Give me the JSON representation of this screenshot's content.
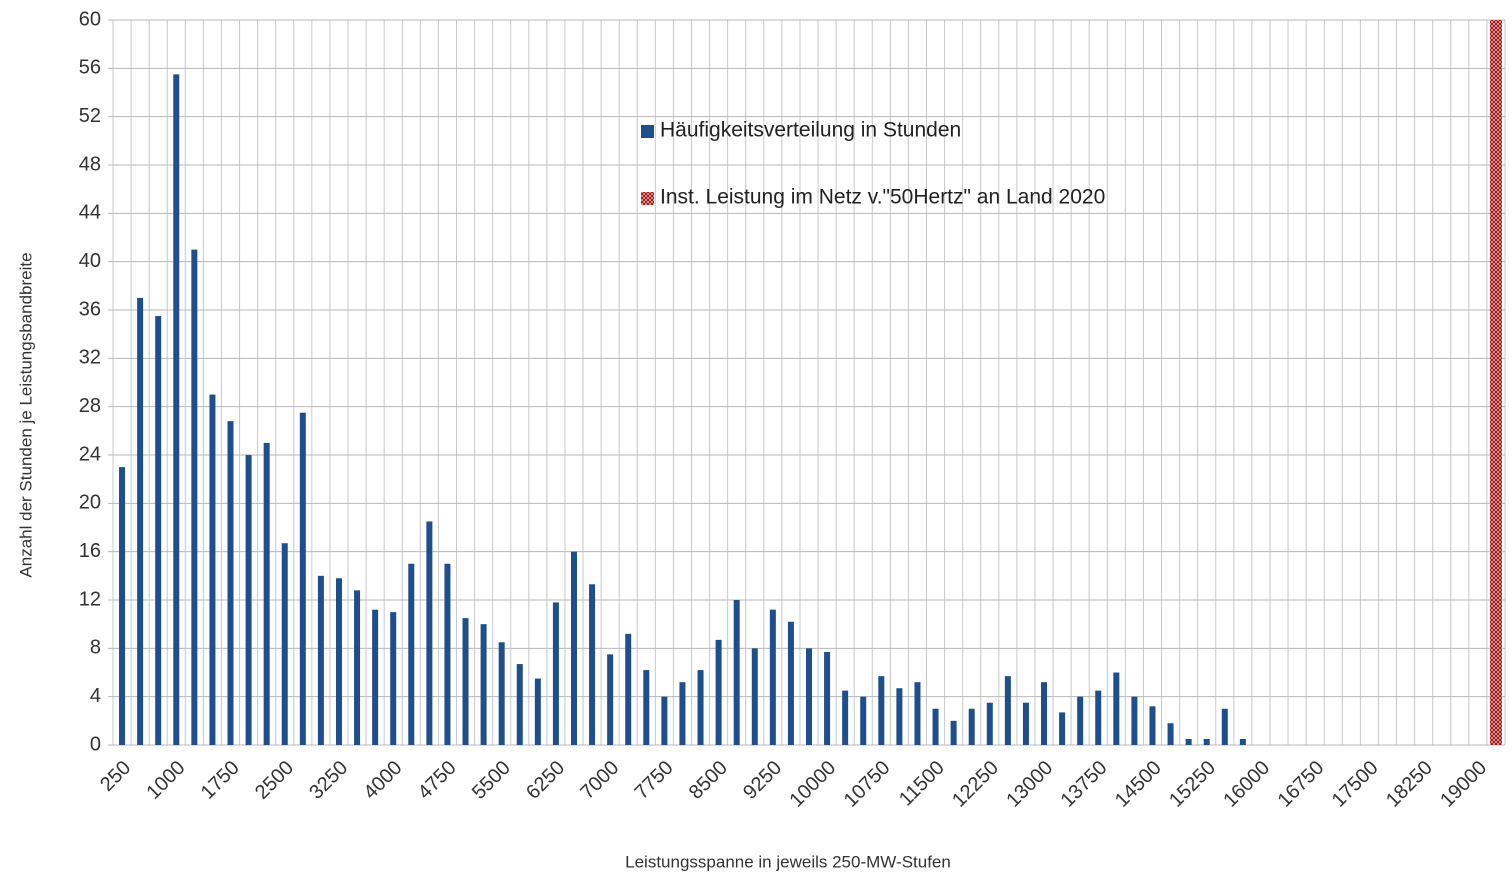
{
  "chart_data": {
    "type": "bar",
    "x_label": "Leistungsspanne in jeweils 250-MW-Stufen",
    "y_label": "Anzahl der Stunden je Leistungsbandbreite",
    "categories": [
      "250",
      null,
      null,
      "1000",
      null,
      null,
      "1750",
      null,
      null,
      "2500",
      null,
      null,
      "3250",
      null,
      null,
      "4000",
      null,
      null,
      "4750",
      null,
      null,
      "5500",
      null,
      null,
      "6250",
      null,
      null,
      "7000",
      null,
      null,
      "7750",
      null,
      null,
      "8500",
      null,
      null,
      "9250",
      null,
      null,
      "10000",
      null,
      null,
      "10750",
      null,
      null,
      "11500",
      null,
      null,
      "12250",
      null,
      null,
      "13000",
      null,
      null,
      "13750",
      null,
      null,
      "14500",
      null,
      null,
      "15250",
      null,
      null,
      "16000",
      null,
      null,
      "16750",
      null,
      null,
      "17500",
      null,
      null,
      "18250",
      null,
      null,
      "19000",
      null
    ],
    "series": [
      {
        "name": "Häufigkeitsverteilung in Stunden",
        "color": "#1f4e8c",
        "values": [
          23,
          37,
          35.5,
          55.5,
          41,
          29,
          26.8,
          24,
          25,
          16.7,
          27.5,
          14,
          13.8,
          12.8,
          11.2,
          11,
          15,
          18.5,
          15,
          10.5,
          10,
          8.5,
          6.7,
          5.5,
          11.8,
          16,
          13.3,
          7.5,
          9.2,
          6.2,
          4,
          5.2,
          6.2,
          8.7,
          12,
          8,
          11.2,
          10.2,
          8,
          7.7,
          4.5,
          4,
          5.7,
          4.7,
          5.2,
          3,
          2,
          3,
          3.5,
          5.7,
          3.5,
          5.2,
          2.7,
          4,
          4.5,
          6,
          4,
          3.2,
          1.8,
          0.5,
          0.5,
          3,
          0.5,
          null,
          null,
          null,
          null,
          null,
          null,
          null,
          null,
          null,
          null,
          null,
          null,
          null,
          null
        ]
      },
      {
        "name": "Inst. Leistung im Netz v.\"50Hertz\" an Land 2020",
        "color": "#a01818",
        "values": [
          null,
          null,
          null,
          null,
          null,
          null,
          null,
          null,
          null,
          null,
          null,
          null,
          null,
          null,
          null,
          null,
          null,
          null,
          null,
          null,
          null,
          null,
          null,
          null,
          null,
          null,
          null,
          null,
          null,
          null,
          null,
          null,
          null,
          null,
          null,
          null,
          null,
          null,
          null,
          null,
          null,
          null,
          null,
          null,
          null,
          null,
          null,
          null,
          null,
          null,
          null,
          null,
          null,
          null,
          null,
          null,
          null,
          null,
          null,
          null,
          null,
          null,
          null,
          null,
          null,
          null,
          null,
          null,
          null,
          null,
          null,
          null,
          null,
          null,
          null,
          null,
          60
        ]
      }
    ],
    "ylim": [
      0,
      60
    ],
    "yticks": [
      0,
      4,
      8,
      12,
      16,
      20,
      24,
      28,
      32,
      36,
      40,
      44,
      48,
      52,
      56,
      60
    ],
    "grid": true
  }
}
